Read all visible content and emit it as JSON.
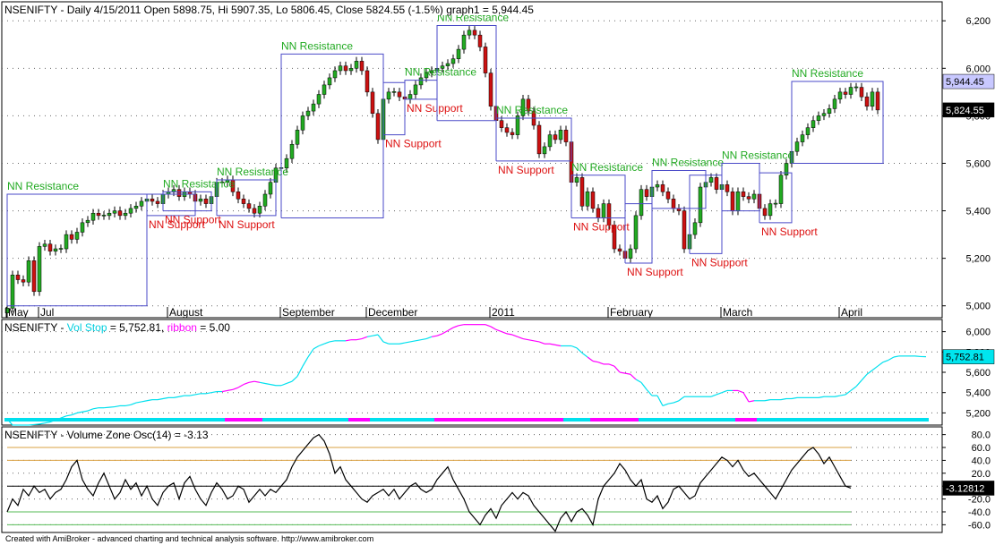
{
  "colors": {
    "up_candle": "#22aa22",
    "down_candle": "#cc1111",
    "resistance_text": "#22aa22",
    "support_text": "#dd1111",
    "nn_box": "#4a4ac8",
    "vol_stop_line": "#00e0ee",
    "ribbon_alt": "#ff00ff",
    "osc_line": "#000000",
    "osc_level_upper": "#d9a040",
    "osc_level_lower": "#55bb55"
  },
  "footer": "Created with AmiBroker - advanced charting and technical analysis software. http://www.amibroker.com",
  "chart_data": [
    {
      "type": "candlestick",
      "title": "NSENIFTY - Daily 4/15/2011 Open 5898.75, Hi 5907.35, Lo 5806.45, Close 5824.55 (-1.5%) graph1 = 5,944.45",
      "ylim": [
        4950,
        6280
      ],
      "yticks": [
        5000,
        5200,
        5400,
        5600,
        5800,
        6000,
        6200
      ],
      "ytick_labels": [
        "5,000",
        "5,200",
        "5,400",
        "5,600",
        "5,800",
        "6,000",
        "6,200"
      ],
      "x_labels": [
        {
          "label": "May",
          "i": 0
        },
        {
          "label": "Jul",
          "i": 6
        },
        {
          "label": "August",
          "i": 30
        },
        {
          "label": "September",
          "i": 51
        },
        {
          "label": "December",
          "i": 67
        },
        {
          "label": "2011",
          "i": 90
        },
        {
          "label": "February",
          "i": 112
        },
        {
          "label": "March",
          "i": 133
        },
        {
          "label": "April",
          "i": 155
        }
      ],
      "closes": [
        4990,
        5130,
        5110,
        5100,
        5190,
        5060,
        5250,
        5260,
        5230,
        5240,
        5240,
        5300,
        5280,
        5310,
        5350,
        5360,
        5390,
        5380,
        5380,
        5390,
        5400,
        5380,
        5390,
        5410,
        5420,
        5440,
        5450,
        5440,
        5430,
        5470,
        5480,
        5490,
        5460,
        5480,
        5470,
        5440,
        5450,
        5430,
        5460,
        5520,
        5520,
        5530,
        5480,
        5450,
        5430,
        5410,
        5390,
        5420,
        5470,
        5520,
        5580,
        5580,
        5620,
        5680,
        5740,
        5800,
        5820,
        5850,
        5890,
        5930,
        5960,
        5990,
        6010,
        5990,
        6000,
        6030,
        5990,
        5900,
        5810,
        5700,
        5870,
        5900,
        5900,
        5880,
        5870,
        5890,
        5930,
        5960,
        5980,
        5990,
        6000,
        6010,
        6020,
        6040,
        6080,
        6140,
        6160,
        6140,
        6090,
        5980,
        5840,
        5780,
        5750,
        5730,
        5720,
        5800,
        5870,
        5820,
        5760,
        5640,
        5670,
        5720,
        5700,
        5740,
        5690,
        5520,
        5540,
        5420,
        5480,
        5410,
        5370,
        5430,
        5340,
        5240,
        5230,
        5200,
        5240,
        5380,
        5490,
        5460,
        5500,
        5510,
        5480,
        5450,
        5410,
        5400,
        5240,
        5300,
        5350,
        5500,
        5520,
        5540,
        5490,
        5510,
        5480,
        5400,
        5480,
        5460,
        5450,
        5470,
        5410,
        5380,
        5430,
        5430,
        5550,
        5600,
        5650,
        5690,
        5720,
        5750,
        5780,
        5800,
        5810,
        5830,
        5870,
        5900,
        5890,
        5920,
        5920,
        5880,
        5840,
        5900,
        5824.55
      ],
      "candle_colors_note": "up/down from close vs previous close",
      "nn_boxes": [
        {
          "i0": 0,
          "i1": 26,
          "lo": 5000,
          "hi": 5470,
          "res": "NN Resistance",
          "sup": ""
        },
        {
          "i0": 26,
          "i1": 35,
          "lo": 5380,
          "hi": 5470,
          "res": "",
          "sup": "NN Support"
        },
        {
          "i0": 29,
          "i1": 38,
          "lo": 5400,
          "hi": 5480,
          "res": "NN Resistance",
          "sup": "NN Support"
        },
        {
          "i0": 39,
          "i1": 50,
          "lo": 5380,
          "hi": 5530,
          "res": "NN Resistance",
          "sup": "NN Support"
        },
        {
          "i0": 51,
          "i1": 70,
          "lo": 5370,
          "hi": 6060,
          "res": "NN Resistance",
          "sup": ""
        },
        {
          "i0": 70,
          "i1": 74,
          "lo": 5720,
          "hi": 5940,
          "res": "",
          "sup": "NN Support"
        },
        {
          "i0": 74,
          "i1": 80,
          "lo": 5870,
          "hi": 5950,
          "res": "NN Resistance",
          "sup": "NN Support"
        },
        {
          "i0": 80,
          "i1": 91,
          "lo": 5780,
          "hi": 6180,
          "res": "NN Resistance",
          "sup": ""
        },
        {
          "i0": 91,
          "i1": 105,
          "lo": 5610,
          "hi": 5790,
          "res": "NN Resistance",
          "sup": "NN Support"
        },
        {
          "i0": 105,
          "i1": 115,
          "lo": 5370,
          "hi": 5550,
          "res": "NN Resistance",
          "sup": "NN Support"
        },
        {
          "i0": 115,
          "i1": 120,
          "lo": 5180,
          "hi": 5430,
          "res": "",
          "sup": "NN Support"
        },
        {
          "i0": 120,
          "i1": 130,
          "lo": 5410,
          "hi": 5570,
          "res": "NN Resistance",
          "sup": ""
        },
        {
          "i0": 127,
          "i1": 133,
          "lo": 5220,
          "hi": 5550,
          "res": "",
          "sup": "NN Support"
        },
        {
          "i0": 133,
          "i1": 140,
          "lo": 5400,
          "hi": 5600,
          "res": "NN Resistance",
          "sup": ""
        },
        {
          "i0": 140,
          "i1": 146,
          "lo": 5350,
          "hi": 5560,
          "res": "",
          "sup": "NN Support"
        },
        {
          "i0": 146,
          "i1": 163,
          "lo": 5600,
          "hi": 5944.45,
          "res": "NN Resistance",
          "sup": ""
        }
      ],
      "value_labels": [
        {
          "value": 5944.45,
          "text": "5,944.45",
          "bg": "#c8c8ff",
          "fg": "#000000"
        },
        {
          "value": 5824.55,
          "text": "5,824.55",
          "bg": "#000000",
          "fg": "#ffffff"
        }
      ]
    },
    {
      "type": "line",
      "title_parts": [
        {
          "text": "NSENIFTY - ",
          "color": "#000000"
        },
        {
          "text": "Vol Stop",
          "color": "#00cfdf"
        },
        {
          "text": " = 5,752.81, ",
          "color": "#000000"
        },
        {
          "text": "ribbon",
          "color": "#ff00ff"
        },
        {
          "text": " = 5.00",
          "color": "#000000"
        }
      ],
      "ylim": [
        5080,
        6120
      ],
      "yticks": [
        5200,
        5400,
        5600,
        5800,
        6000
      ],
      "ytick_labels": [
        "5,200",
        "5,400",
        "5,600",
        "5,800",
        "6,000"
      ],
      "last_label": "5,752.81",
      "values": [
        5140,
        5080,
        5080,
        5080,
        5080,
        5085,
        5090,
        5100,
        5110,
        5130,
        5150,
        5170,
        5180,
        5200,
        5210,
        5220,
        5240,
        5250,
        5250,
        5255,
        5260,
        5270,
        5270,
        5280,
        5300,
        5310,
        5320,
        5330,
        5330,
        5340,
        5350,
        5350,
        5360,
        5370,
        5370,
        5380,
        5390,
        5390,
        5400,
        5410,
        5410,
        5420,
        5430,
        5450,
        5480,
        5500,
        5510,
        5500,
        5490,
        5480,
        5470,
        5470,
        5490,
        5510,
        5560,
        5660,
        5750,
        5830,
        5860,
        5880,
        5900,
        5910,
        5910,
        5910,
        5920,
        5920,
        5930,
        5950,
        5960,
        5970,
        5900,
        5880,
        5880,
        5880,
        5890,
        5900,
        5910,
        5920,
        5930,
        5950,
        5960,
        5980,
        6010,
        6040,
        6060,
        6070,
        6070,
        6070,
        6070,
        6070,
        6050,
        6020,
        6000,
        5980,
        5970,
        5950,
        5930,
        5920,
        5910,
        5900,
        5880,
        5880,
        5870,
        5860,
        5860,
        5860,
        5840,
        5790,
        5750,
        5710,
        5700,
        5680,
        5680,
        5660,
        5600,
        5590,
        5580,
        5530,
        5500,
        5430,
        5370,
        5370,
        5270,
        5290,
        5300,
        5320,
        5360,
        5360,
        5360,
        5360,
        5360,
        5360,
        5380,
        5400,
        5420,
        5420,
        5420,
        5400,
        5310,
        5320,
        5320,
        5320,
        5330,
        5330,
        5330,
        5340,
        5340,
        5350,
        5350,
        5350,
        5350,
        5350,
        5360,
        5360,
        5360,
        5370,
        5380,
        5420,
        5460,
        5520,
        5580,
        5620,
        5660,
        5700,
        5720,
        5750,
        5760,
        5760,
        5760,
        5760,
        5755,
        5752.81
      ],
      "ribbon_alt_segments": [
        [
          41,
          47
        ],
        [
          64,
          67
        ],
        [
          80,
          103
        ],
        [
          109,
          117
        ],
        [
          136,
          139
        ]
      ]
    },
    {
      "type": "line",
      "title": "NSENIFTY - Volume Zone Osc(14) = -3.13",
      "ylim": [
        -72,
        92
      ],
      "yticks": [
        80,
        60,
        40,
        20,
        0,
        -20,
        -40,
        -60
      ],
      "ytick_labels": [
        "80.0",
        "60.0",
        "40.0",
        "20.0",
        "0.0",
        "-20.0",
        "-40.0",
        "-60.0"
      ],
      "levels": [
        60,
        40,
        0,
        -40,
        -60
      ],
      "last_label": "-3.12812",
      "values": [
        -40,
        -20,
        -30,
        -5,
        -15,
        0,
        -10,
        -5,
        -20,
        -10,
        -5,
        10,
        30,
        40,
        10,
        -5,
        -15,
        5,
        20,
        0,
        -20,
        -10,
        10,
        -5,
        5,
        -15,
        0,
        -20,
        -30,
        -10,
        0,
        5,
        -20,
        5,
        15,
        -5,
        -20,
        -30,
        -10,
        5,
        -5,
        -20,
        -15,
        0,
        -5,
        -25,
        -15,
        -5,
        -15,
        -5,
        -10,
        0,
        10,
        30,
        45,
        55,
        65,
        75,
        80,
        70,
        50,
        20,
        30,
        10,
        0,
        -10,
        -20,
        -25,
        -15,
        -10,
        -5,
        -15,
        -5,
        -20,
        -10,
        0,
        5,
        -5,
        -10,
        -5,
        10,
        20,
        30,
        10,
        -5,
        -20,
        -40,
        -50,
        -60,
        -45,
        -35,
        -50,
        -30,
        -20,
        -10,
        -20,
        -10,
        -15,
        -30,
        -40,
        -50,
        -60,
        -70,
        -50,
        -40,
        -55,
        -40,
        -35,
        -45,
        -60,
        -20,
        0,
        10,
        20,
        35,
        25,
        10,
        0,
        10,
        -20,
        -25,
        -15,
        -35,
        -25,
        -5,
        0,
        -10,
        -20,
        -15,
        5,
        15,
        25,
        35,
        45,
        40,
        30,
        40,
        25,
        15,
        20,
        10,
        0,
        -10,
        -20,
        -5,
        10,
        25,
        35,
        45,
        55,
        60,
        50,
        35,
        45,
        30,
        15,
        0,
        -3.13
      ]
    }
  ]
}
